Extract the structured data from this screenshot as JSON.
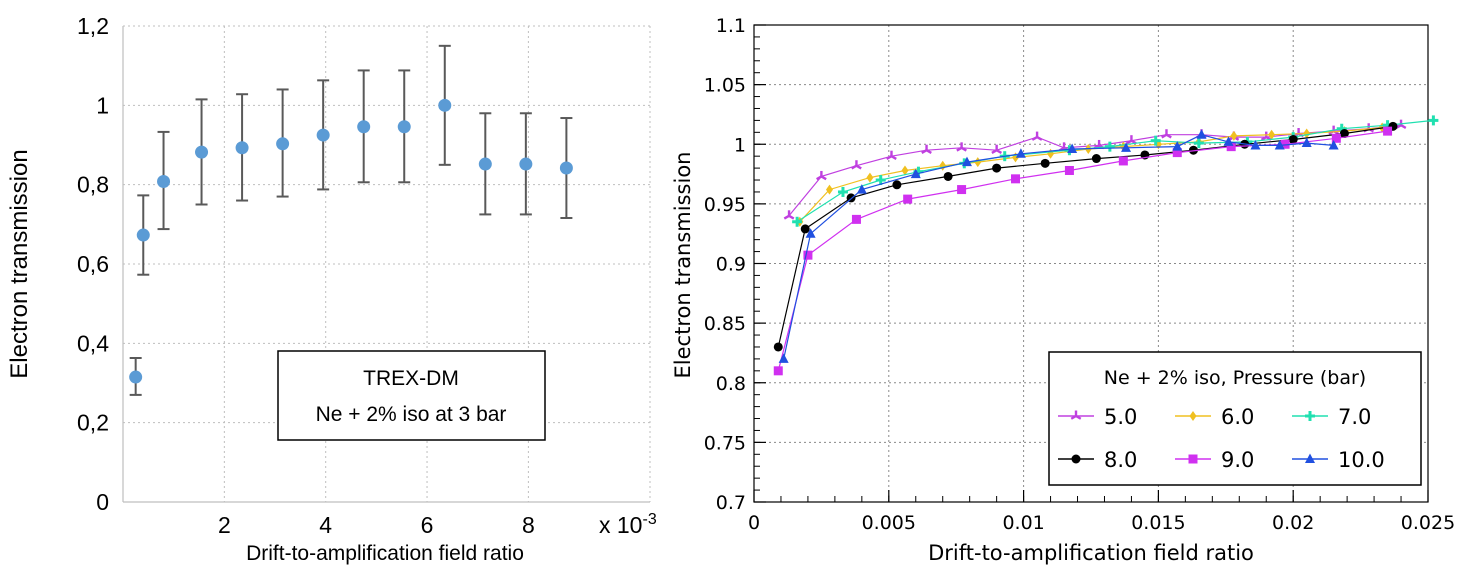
{
  "chart_data": [
    {
      "type": "scatter",
      "error_bars": true,
      "title": "",
      "xlabel": "Drift-to-amplification field ratio",
      "ylabel": "Electron transmission",
      "x_multiplier_label": "x 10",
      "x_multiplier_exponent": "-3",
      "xlim": [
        0,
        10.4
      ],
      "ylim": [
        0,
        1.2
      ],
      "x_ticks": [
        2,
        4,
        6,
        8
      ],
      "x_tick_labels": [
        "2",
        "4",
        "6",
        "8"
      ],
      "y_ticks": [
        0,
        0.2,
        0.4,
        0.6,
        0.8,
        1.0,
        1.2
      ],
      "y_tick_labels": [
        "0",
        "0,2",
        "0,4",
        "0,6",
        "0,8",
        "1",
        "1,2"
      ],
      "grid": true,
      "marker_color": "#5b9bd5",
      "errorbar_color": "#595959",
      "annotation": [
        "TREX-DM",
        "Ne + 2% iso at 3 bar"
      ],
      "points": [
        {
          "x": 0.25,
          "y": 0.315,
          "lo": 0.27,
          "hi": 0.363
        },
        {
          "x": 0.4,
          "y": 0.673,
          "lo": 0.573,
          "hi": 0.773
        },
        {
          "x": 0.8,
          "y": 0.808,
          "lo": 0.688,
          "hi": 0.933
        },
        {
          "x": 1.55,
          "y": 0.882,
          "lo": 0.75,
          "hi": 1.015
        },
        {
          "x": 2.35,
          "y": 0.893,
          "lo": 0.76,
          "hi": 1.028
        },
        {
          "x": 3.15,
          "y": 0.903,
          "lo": 0.77,
          "hi": 1.04
        },
        {
          "x": 3.95,
          "y": 0.925,
          "lo": 0.788,
          "hi": 1.063
        },
        {
          "x": 4.75,
          "y": 0.946,
          "lo": 0.806,
          "hi": 1.088
        },
        {
          "x": 5.55,
          "y": 0.946,
          "lo": 0.806,
          "hi": 1.088
        },
        {
          "x": 6.35,
          "y": 1.0,
          "lo": 0.85,
          "hi": 1.15
        },
        {
          "x": 7.15,
          "y": 0.852,
          "lo": 0.725,
          "hi": 0.98
        },
        {
          "x": 7.95,
          "y": 0.852,
          "lo": 0.725,
          "hi": 0.98
        },
        {
          "x": 8.75,
          "y": 0.842,
          "lo": 0.716,
          "hi": 0.968
        }
      ]
    },
    {
      "type": "line",
      "title": "",
      "xlabel": "Drift-to-amplification field ratio",
      "ylabel": "Electron transmission",
      "xlim": [
        0,
        0.025
      ],
      "ylim": [
        0.7,
        1.1
      ],
      "x_ticks": [
        0,
        0.005,
        0.01,
        0.015,
        0.02,
        0.025
      ],
      "x_tick_labels": [
        "0",
        "0.005",
        "0.01",
        "0.015",
        "0.02",
        "0.025"
      ],
      "y_ticks": [
        0.7,
        0.75,
        0.8,
        0.85,
        0.9,
        0.95,
        1.0,
        1.05,
        1.1
      ],
      "y_tick_labels": [
        "0.7",
        "0.75",
        "0.8",
        "0.85",
        "0.9",
        "0.95",
        "1",
        "1.05",
        "1.1"
      ],
      "grid": true,
      "legend_title": "Ne + 2% iso, Pressure (bar)",
      "legend_position": "bottom-right",
      "series": [
        {
          "name": "5.0",
          "color": "#c040e0",
          "marker": "star",
          "x": [
            0.0013,
            0.0025,
            0.0038,
            0.0051,
            0.0064,
            0.0077,
            0.009,
            0.0105,
            0.0115,
            0.0128,
            0.014,
            0.0153,
            0.0166,
            0.0178,
            0.019,
            0.0202,
            0.0215,
            0.0228,
            0.024
          ],
          "y": [
            0.94,
            0.973,
            0.982,
            0.99,
            0.995,
            0.997,
            0.995,
            1.006,
            0.997,
            0.999,
            1.003,
            1.008,
            1.008,
            1.006,
            1.006,
            1.009,
            1.011,
            1.013,
            1.016
          ]
        },
        {
          "name": "6.0",
          "color": "#f0c020",
          "marker": "diamond",
          "x": [
            0.0017,
            0.0028,
            0.0043,
            0.0056,
            0.007,
            0.0083,
            0.0097,
            0.011,
            0.0124,
            0.0137,
            0.015,
            0.0165,
            0.0178,
            0.0192,
            0.0205,
            0.0219,
            0.0233
          ],
          "y": [
            0.935,
            0.962,
            0.972,
            0.978,
            0.982,
            0.985,
            0.989,
            0.992,
            0.996,
            0.998,
            1.0,
            1.002,
            1.007,
            1.008,
            1.009,
            1.011,
            1.014
          ]
        },
        {
          "name": "7.0",
          "color": "#20e0b0",
          "marker": "cross",
          "x": [
            0.0016,
            0.0033,
            0.0047,
            0.0061,
            0.0078,
            0.0093,
            0.0117,
            0.0132,
            0.0149,
            0.0165,
            0.0183,
            0.02,
            0.0218,
            0.0235,
            0.0252
          ],
          "y": [
            0.935,
            0.96,
            0.97,
            0.977,
            0.984,
            0.99,
            0.995,
            0.998,
            1.003,
            1.001,
            1.002,
            1.006,
            1.013,
            1.016,
            1.02
          ]
        },
        {
          "name": "8.0",
          "color": "#000000",
          "marker": "circle",
          "x": [
            0.0009,
            0.0019,
            0.0036,
            0.0053,
            0.0072,
            0.009,
            0.0108,
            0.0127,
            0.0145,
            0.0163,
            0.0182,
            0.02,
            0.0219,
            0.0237
          ],
          "y": [
            0.83,
            0.929,
            0.955,
            0.966,
            0.973,
            0.98,
            0.984,
            0.988,
            0.991,
            0.995,
            1.0,
            1.004,
            1.009,
            1.015
          ]
        },
        {
          "name": "9.0",
          "color": "#d030f0",
          "marker": "square",
          "x": [
            0.0009,
            0.002,
            0.0038,
            0.0057,
            0.0077,
            0.0097,
            0.0117,
            0.0137,
            0.0157,
            0.0177,
            0.0197,
            0.0216,
            0.0235
          ],
          "y": [
            0.81,
            0.907,
            0.937,
            0.954,
            0.962,
            0.971,
            0.978,
            0.986,
            0.993,
            0.998,
            1.0,
            1.005,
            1.011
          ]
        },
        {
          "name": "10.0",
          "color": "#2050e0",
          "marker": "triangle",
          "x": [
            0.0011,
            0.0021,
            0.004,
            0.006,
            0.0079,
            0.0099,
            0.0118,
            0.0138,
            0.0157,
            0.0166,
            0.0176,
            0.0186,
            0.0195,
            0.0205,
            0.0215
          ],
          "y": [
            0.82,
            0.925,
            0.962,
            0.975,
            0.985,
            0.992,
            0.996,
            0.997,
            0.998,
            1.008,
            1.002,
            0.999,
            0.999,
            1.001,
            0.999
          ]
        }
      ]
    }
  ]
}
